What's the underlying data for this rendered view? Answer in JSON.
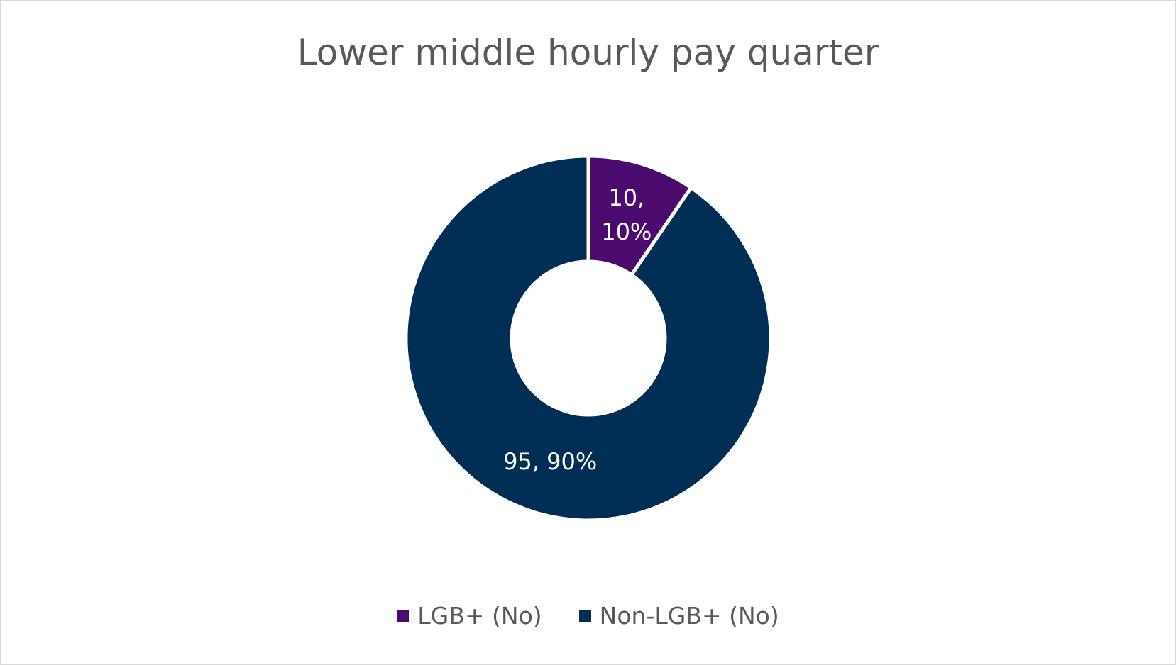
{
  "chart_data": {
    "type": "donut",
    "title": "Lower middle hourly pay quarter",
    "categories": [
      "LGB+ (No)",
      "Non-LGB+ (No)"
    ],
    "values": [
      10,
      95
    ],
    "value_labels": [
      "10, 10%",
      "95, 90%"
    ],
    "colors": [
      "#4b0a6e",
      "#002e55"
    ],
    "legend": "bottom"
  }
}
